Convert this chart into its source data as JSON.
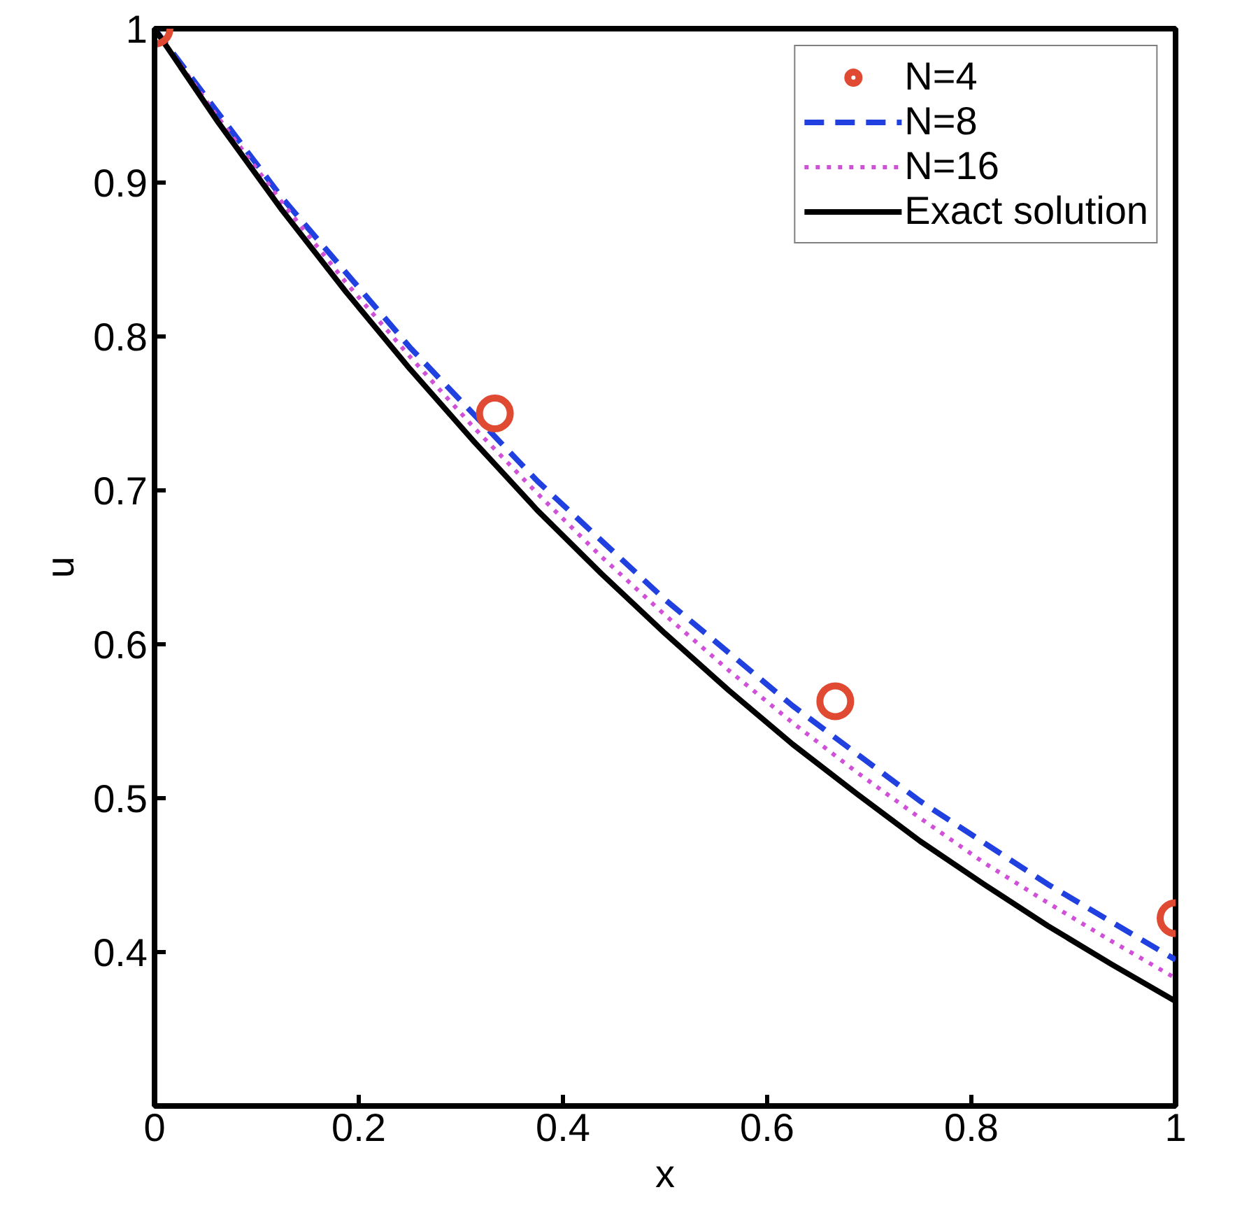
{
  "chart_data": {
    "type": "line",
    "xlabel": "x",
    "ylabel": "u",
    "xlim": [
      0,
      1
    ],
    "ylim": [
      0.3,
      1
    ],
    "xticks": [
      0,
      0.2,
      0.4,
      0.6,
      0.8,
      1
    ],
    "yticks": [
      0.4,
      0.5,
      0.6,
      0.7,
      0.8,
      0.9,
      1
    ],
    "grid": false,
    "legend": "top right",
    "series": [
      {
        "name": "N=4",
        "type": "scatter",
        "marker": "circle",
        "color": "#e04a32",
        "x": [
          0,
          0.3333,
          0.6667,
          1
        ],
        "values": [
          1,
          0.75,
          0.563,
          0.422
        ]
      },
      {
        "name": "N=8",
        "line_style": "dashed",
        "color": "#2040e0",
        "x": [
          0,
          0.125,
          0.25,
          0.375,
          0.5,
          0.625,
          0.75,
          0.875,
          1
        ],
        "values": [
          1,
          0.89,
          0.793,
          0.706,
          0.629,
          0.56,
          0.498,
          0.444,
          0.395
        ]
      },
      {
        "name": "N=16",
        "line_style": "dotted",
        "color": "#d050d8",
        "x": [
          0,
          0.0625,
          0.125,
          0.1875,
          0.25,
          0.3125,
          0.375,
          0.4375,
          0.5,
          0.5625,
          0.625,
          0.6875,
          0.75,
          0.8125,
          0.875,
          0.9375,
          1
        ],
        "values": [
          1,
          0.942,
          0.887,
          0.835,
          0.787,
          0.741,
          0.698,
          0.657,
          0.619,
          0.583,
          0.549,
          0.517,
          0.487,
          0.458,
          0.432,
          0.407,
          0.383
        ]
      },
      {
        "name": "Exact solution",
        "line_style": "solid",
        "color": "#000000",
        "x": [
          0,
          0.0625,
          0.125,
          0.1875,
          0.25,
          0.3125,
          0.375,
          0.4375,
          0.5,
          0.5625,
          0.625,
          0.6875,
          0.75,
          0.8125,
          0.875,
          0.9375,
          1
        ],
        "values": [
          1,
          0.939,
          0.882,
          0.829,
          0.779,
          0.732,
          0.687,
          0.646,
          0.607,
          0.57,
          0.535,
          0.503,
          0.472,
          0.444,
          0.417,
          0.392,
          0.368
        ]
      }
    ]
  }
}
